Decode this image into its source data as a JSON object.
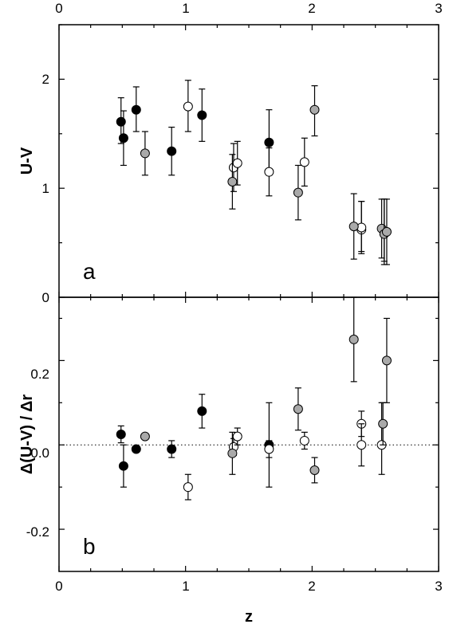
{
  "colors": {
    "filled": "#000000",
    "open": "#ffffff",
    "grey": "#a9a9a9",
    "stroke": "#000000"
  },
  "chart_data": [
    {
      "type": "scatter",
      "panel_label": "a",
      "xlabel": "",
      "ylabel": "U-V",
      "xlim": [
        0,
        3
      ],
      "ylim": [
        0,
        2.5
      ],
      "xticks": [
        "0",
        "1",
        "2",
        "3"
      ],
      "yticks": [
        "0",
        "1",
        "2"
      ],
      "top_axis_ticks": [
        "0",
        "1",
        "2",
        "3"
      ],
      "grid": false,
      "series": [
        {
          "marker": "filled",
          "points": [
            {
              "x": 0.49,
              "y": 1.61,
              "err_lo": 0.2,
              "err_hi": 0.22
            },
            {
              "x": 0.51,
              "y": 1.46,
              "err_lo": 0.25,
              "err_hi": 0.25
            },
            {
              "x": 0.61,
              "y": 1.72,
              "err_lo": 0.2,
              "err_hi": 0.21
            },
            {
              "x": 0.89,
              "y": 1.34,
              "err_lo": 0.22,
              "err_hi": 0.22
            },
            {
              "x": 1.13,
              "y": 1.67,
              "err_lo": 0.24,
              "err_hi": 0.24
            },
            {
              "x": 1.66,
              "y": 1.42,
              "err_lo": 0.3,
              "err_hi": 0.3
            }
          ]
        },
        {
          "marker": "open",
          "points": [
            {
              "x": 1.02,
              "y": 1.75,
              "err_lo": 0.23,
              "err_hi": 0.24
            },
            {
              "x": 1.38,
              "y": 1.19,
              "err_lo": 0.22,
              "err_hi": 0.22
            },
            {
              "x": 1.41,
              "y": 1.23,
              "err_lo": 0.2,
              "err_hi": 0.2
            },
            {
              "x": 1.66,
              "y": 1.15,
              "err_lo": 0.22,
              "err_hi": 0.22
            },
            {
              "x": 1.94,
              "y": 1.24,
              "err_lo": 0.22,
              "err_hi": 0.22
            },
            {
              "x": 2.39,
              "y": 0.62,
              "err_lo": 0.2,
              "err_hi": 0.26
            },
            {
              "x": 2.39,
              "y": 0.64,
              "err_lo": 0.24,
              "err_hi": 0.24
            },
            {
              "x": 2.57,
              "y": 0.6,
              "err_lo": 0.3,
              "err_hi": 0.3
            }
          ]
        },
        {
          "marker": "grey",
          "points": [
            {
              "x": 0.68,
              "y": 1.32,
              "err_lo": 0.2,
              "err_hi": 0.2
            },
            {
              "x": 1.37,
              "y": 1.06,
              "err_lo": 0.25,
              "err_hi": 0.25
            },
            {
              "x": 1.89,
              "y": 0.96,
              "err_lo": 0.25,
              "err_hi": 0.25
            },
            {
              "x": 2.02,
              "y": 1.72,
              "err_lo": 0.24,
              "err_hi": 0.22
            },
            {
              "x": 2.33,
              "y": 0.65,
              "err_lo": 0.3,
              "err_hi": 0.3
            },
            {
              "x": 2.55,
              "y": 0.63,
              "err_lo": 0.27,
              "err_hi": 0.27
            },
            {
              "x": 2.57,
              "y": 0.58,
              "err_lo": 0.25,
              "err_hi": 0.32
            },
            {
              "x": 2.59,
              "y": 0.6,
              "err_lo": 0.3,
              "err_hi": 0.3
            }
          ]
        }
      ]
    },
    {
      "type": "scatter",
      "panel_label": "b",
      "xlabel": "z",
      "ylabel": "Δ(U-V) / Δr",
      "xlim": [
        0,
        3
      ],
      "ylim": [
        -0.3,
        0.35
      ],
      "xticks": [
        "0",
        "1",
        "2",
        "3"
      ],
      "yticks": [
        "-0.2",
        "0.0",
        "0.2"
      ],
      "reference_line": {
        "y": 0,
        "style": "dotted"
      },
      "grid": false,
      "series": [
        {
          "marker": "filled",
          "points": [
            {
              "x": 0.49,
              "y": 0.025,
              "err_lo": 0.02,
              "err_hi": 0.02
            },
            {
              "x": 0.51,
              "y": -0.05,
              "err_lo": 0.05,
              "err_hi": 0.05
            },
            {
              "x": 0.61,
              "y": -0.01,
              "err_lo": 0.005,
              "err_hi": 0.005
            },
            {
              "x": 0.89,
              "y": -0.01,
              "err_lo": 0.02,
              "err_hi": 0.02
            },
            {
              "x": 1.13,
              "y": 0.08,
              "err_lo": 0.04,
              "err_hi": 0.04
            },
            {
              "x": 1.66,
              "y": 0.0,
              "err_lo": 0.1,
              "err_hi": 0.1
            }
          ]
        },
        {
          "marker": "open",
          "points": [
            {
              "x": 1.02,
              "y": -0.1,
              "err_lo": 0.03,
              "err_hi": 0.03
            },
            {
              "x": 1.38,
              "y": -0.005,
              "err_lo": 0.02,
              "err_hi": 0.02
            },
            {
              "x": 1.41,
              "y": 0.02,
              "err_lo": 0.02,
              "err_hi": 0.02
            },
            {
              "x": 1.66,
              "y": -0.01,
              "err_lo": 0.02,
              "err_hi": 0.02
            },
            {
              "x": 1.94,
              "y": 0.01,
              "err_lo": 0.02,
              "err_hi": 0.02
            },
            {
              "x": 2.39,
              "y": 0.05,
              "err_lo": 0.03,
              "err_hi": 0.03
            },
            {
              "x": 2.39,
              "y": 0.0,
              "err_lo": 0.05,
              "err_hi": 0.05
            },
            {
              "x": 2.55,
              "y": 0.0,
              "err_lo": 0.07,
              "err_hi": 0.1
            }
          ]
        },
        {
          "marker": "grey",
          "points": [
            {
              "x": 0.68,
              "y": 0.02,
              "err_lo": 0.005,
              "err_hi": 0.005
            },
            {
              "x": 1.37,
              "y": -0.02,
              "err_lo": 0.05,
              "err_hi": 0.05
            },
            {
              "x": 1.89,
              "y": 0.085,
              "err_lo": 0.05,
              "err_hi": 0.05
            },
            {
              "x": 2.02,
              "y": -0.06,
              "err_lo": 0.03,
              "err_hi": 0.03
            },
            {
              "x": 2.33,
              "y": 0.25,
              "err_lo": 0.1,
              "err_hi": 0.1
            },
            {
              "x": 2.56,
              "y": 0.05,
              "err_lo": 0.05,
              "err_hi": 0.05
            },
            {
              "x": 2.59,
              "y": 0.2,
              "err_lo": 0.1,
              "err_hi": 0.1
            }
          ]
        }
      ]
    }
  ]
}
